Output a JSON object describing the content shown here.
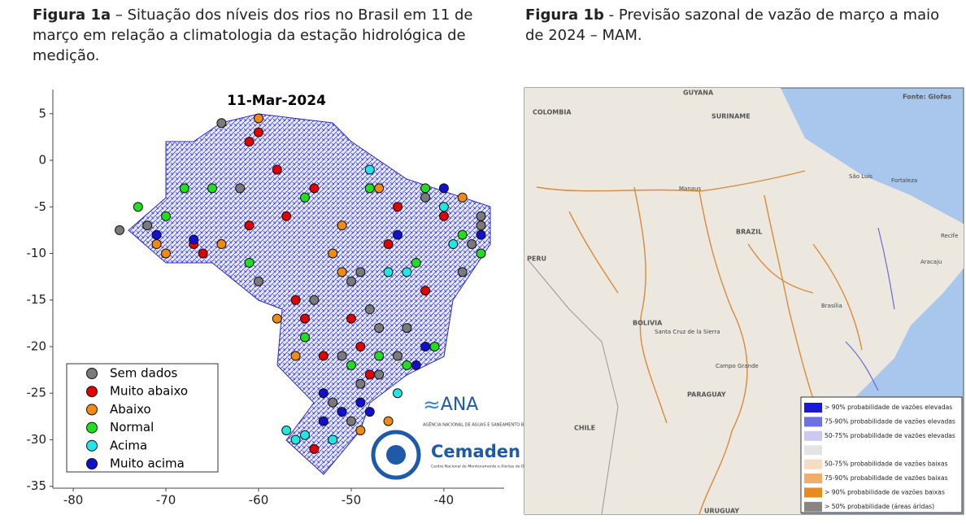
{
  "captions": [
    {
      "label": "Figura 1a",
      "text": "– Situação dos níveis dos rios no Brasil em 11 de março em relação a climatologia da estação hidrológica de medição."
    },
    {
      "label": "Figura 1b",
      "text": "- Previsão sazonal de vazão de março a maio de 2024 – MAM."
    }
  ],
  "chart_data": {
    "type": "scatter",
    "title": "11-Mar-2024",
    "xlim": [
      -82.2,
      -33.5
    ],
    "ylim": [
      -35.2,
      7.6
    ],
    "xticks": [
      -80,
      -70,
      -60,
      -50,
      -40
    ],
    "yticks": [
      5,
      0,
      -5,
      -10,
      -15,
      -20,
      -25,
      -30,
      -35
    ],
    "legend": "lower left",
    "series": [
      {
        "name": "Sem dados",
        "color": "#7a7a7a",
        "x": [
          -64,
          -36,
          -36,
          -37,
          -50,
          -49,
          -48,
          -47,
          -45,
          -47,
          -49,
          -52,
          -50,
          -54,
          -60,
          -72,
          -75,
          -62,
          -42,
          -38,
          -44,
          -51
        ],
        "y": [
          4,
          -6,
          -7,
          -9,
          -13,
          -12,
          -16,
          -18,
          -21,
          -23,
          -24,
          -26,
          -28,
          -15,
          -13,
          -7,
          -7.5,
          -3,
          -4,
          -12,
          -18,
          -21
        ]
      },
      {
        "name": "Muito abaixo",
        "color": "#e00000",
        "x": [
          -60,
          -61,
          -58,
          -54,
          -57,
          -61,
          -66,
          -67,
          -56,
          -55,
          -53,
          -49,
          -45,
          -40,
          -46,
          -42,
          -50,
          -54,
          -48
        ],
        "y": [
          3,
          2,
          -1,
          -3,
          -6,
          -7,
          -10,
          -9,
          -15,
          -17,
          -21,
          -20,
          -5,
          -6,
          -9,
          -14,
          -17,
          -31,
          -23
        ]
      },
      {
        "name": "Abaixo",
        "color": "#f08a10",
        "x": [
          -60,
          -70,
          -71,
          -64,
          -52,
          -51,
          -47,
          -38,
          -56,
          -58,
          -46,
          -51,
          -49
        ],
        "y": [
          4.5,
          -10,
          -9,
          -9,
          -10,
          -7,
          -3,
          -4,
          -21,
          -17,
          -28,
          -12,
          -29
        ]
      },
      {
        "name": "Normal",
        "color": "#22dd22",
        "x": [
          -73,
          -70,
          -68,
          -65,
          -55,
          -48,
          -42,
          -38,
          -36,
          -43,
          -55,
          -47,
          -44,
          -41,
          -50,
          -61
        ],
        "y": [
          -5,
          -6,
          -3,
          -3,
          -4,
          -3,
          -3,
          -8,
          -10,
          -11,
          -19,
          -21,
          -22,
          -20,
          -22,
          -11
        ]
      },
      {
        "name": "Acima",
        "color": "#22e6e6",
        "x": [
          -57,
          -56,
          -55,
          -52,
          -46,
          -44,
          -39,
          -45,
          -48,
          -40
        ],
        "y": [
          -29,
          -30,
          -29.5,
          -30,
          -12,
          -12,
          -9,
          -25,
          -1,
          -5
        ]
      },
      {
        "name": "Muito acima",
        "color": "#1010d0",
        "x": [
          -71,
          -67,
          -36,
          -42,
          -43,
          -49,
          -51,
          -48,
          -53,
          -45,
          -53,
          -40
        ],
        "y": [
          -8,
          -8.5,
          -8,
          -20,
          -22,
          -26,
          -27,
          -27,
          -28,
          -8,
          -25,
          -3
        ]
      }
    ]
  },
  "logos": {
    "ana": "ANA",
    "ana_sub": "AGÊNCIA NACIONAL DE ÁGUAS E SANEAMENTO BÁSICO",
    "cemaden": "Cemaden",
    "cemaden_sub": "Centro Nacional de Monitoramento e Alertas de Desastres Naturais"
  },
  "map": {
    "source": "Fonte: Glofas",
    "labels": [
      "COLOMBIA",
      "GUYANA",
      "SURINAME",
      "BRAZIL",
      "PERU",
      "BOLIVIA",
      "PARAGUAY",
      "CHILE",
      "URUGUAY",
      "São Luís",
      "Fortaleza",
      "Recife",
      "Aracaju",
      "Brasília",
      "Campo Grande",
      "Santa Cruz de la Sierra",
      "Manaus"
    ],
    "legend": [
      {
        "color": "#1a1ad6",
        "label": "> 90% probabilidade de vazões elevadas"
      },
      {
        "color": "#6f6fe6",
        "label": "75-90% probabilidade de vazões elevadas"
      },
      {
        "color": "#c9c9f2",
        "label": "50-75% probabilidade de vazões elevadas"
      },
      {
        "color": "#e4e4e4"
      },
      {
        "color": "#f6dcc0",
        "label": "50-75% probabilidade de vazões baixas"
      },
      {
        "color": "#efae6c",
        "label": "75-90% probabilidade de vazões baixas"
      },
      {
        "color": "#e88a1e",
        "label": "> 90% probabilidade de vazões baixas"
      },
      {
        "color": "#8a8580",
        "label": "> 50% probabilidade (áreas áridas)"
      }
    ]
  }
}
